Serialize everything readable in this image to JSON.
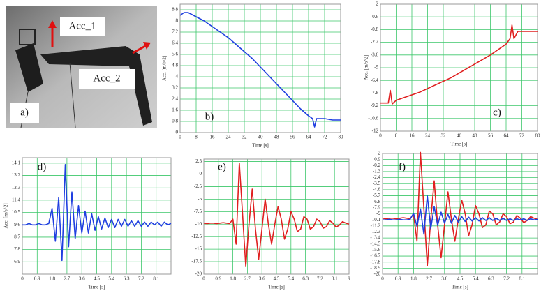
{
  "photo": {
    "panel_label": "a)",
    "labels": [
      "Acc_1",
      "Acc_2"
    ]
  },
  "chart_data": [
    {
      "type": "line",
      "panel_label": "b)",
      "x_label": "Time [s]",
      "y_label": "Acc. [m/s^2]",
      "xlim": [
        0,
        80
      ],
      "xticks": [
        0,
        8,
        16,
        24,
        32,
        40,
        48,
        56,
        64,
        72,
        80
      ],
      "ylim": [
        0,
        9.2
      ],
      "yticks": [
        0,
        0.8,
        1.6,
        2.4,
        3.2,
        4,
        4.8,
        5.6,
        6.4,
        7.2,
        8,
        8.8
      ],
      "grid": true,
      "x": [
        0,
        2,
        4,
        8,
        12,
        16,
        20,
        24,
        28,
        32,
        36,
        40,
        44,
        48,
        52,
        56,
        60,
        64,
        66,
        67,
        68,
        72,
        76,
        80
      ],
      "series": [
        {
          "color": "#1f3fe0",
          "values": [
            8.4,
            8.6,
            8.6,
            8.3,
            8.0,
            7.6,
            7.2,
            6.8,
            6.3,
            5.8,
            5.3,
            4.7,
            4.1,
            3.5,
            2.9,
            2.3,
            1.7,
            1.2,
            1.0,
            0.4,
            1.0,
            1.0,
            0.9,
            0.9
          ]
        }
      ]
    },
    {
      "type": "line",
      "panel_label": "c)",
      "x_label": "Time [s]",
      "y_label": "Acc. [m/s^2]",
      "xlim": [
        0,
        80
      ],
      "xticks": [
        0,
        8,
        16,
        24,
        32,
        40,
        48,
        56,
        64,
        72,
        80
      ],
      "ylim": [
        -12,
        2
      ],
      "yticks": [
        -12,
        -10.6,
        -9.2,
        -7.8,
        -6.4,
        -5,
        -3.6,
        -2.2,
        -0.8,
        0.6,
        2
      ],
      "grid": true,
      "x": [
        0,
        2,
        4,
        5,
        6,
        8,
        12,
        16,
        20,
        24,
        28,
        32,
        36,
        40,
        44,
        48,
        52,
        56,
        60,
        64,
        66,
        67,
        68,
        70,
        72,
        76,
        80
      ],
      "series": [
        {
          "color": "#e02020",
          "values": [
            -8.9,
            -8.9,
            -8.9,
            -7.5,
            -9.0,
            -8.6,
            -8.3,
            -8.0,
            -7.7,
            -7.3,
            -6.9,
            -6.5,
            -6.1,
            -5.6,
            -5.1,
            -4.6,
            -4.1,
            -3.6,
            -3.0,
            -2.4,
            -1.8,
            -0.3,
            -1.8,
            -1.0,
            -1.0,
            -1.0,
            -1.0
          ]
        }
      ]
    },
    {
      "type": "line",
      "panel_label": "d)",
      "x_label": "Time [s]",
      "y_label": "Acc. [m/s^2]",
      "xlim": [
        0,
        9
      ],
      "xticks": [
        0,
        0.9,
        1.8,
        2.7,
        3.6,
        4.5,
        5.4,
        6.3,
        7.2,
        8.1
      ],
      "ylim": [
        6,
        14.5
      ],
      "yticks": [
        6.9,
        7.8,
        8.7,
        9.6,
        10.5,
        11.4,
        12.3,
        13.2,
        14.1
      ],
      "grid": true,
      "x": [
        0,
        0.2,
        0.4,
        0.6,
        0.8,
        1.0,
        1.2,
        1.4,
        1.6,
        1.8,
        2.0,
        2.2,
        2.4,
        2.6,
        2.8,
        3.0,
        3.2,
        3.4,
        3.6,
        3.8,
        4.0,
        4.2,
        4.4,
        4.6,
        4.8,
        5.0,
        5.2,
        5.4,
        5.6,
        5.8,
        6.0,
        6.2,
        6.4,
        6.6,
        6.8,
        7.0,
        7.2,
        7.4,
        7.6,
        7.8,
        8.0,
        8.2,
        8.4,
        8.6,
        8.8,
        9.0
      ],
      "series": [
        {
          "color": "#1f3fe0",
          "values": [
            9.6,
            9.6,
            9.7,
            9.6,
            9.6,
            9.7,
            9.6,
            9.6,
            9.7,
            10.8,
            8.4,
            11.6,
            7.0,
            14.0,
            8.0,
            12.0,
            8.6,
            11.0,
            9.0,
            10.6,
            9.0,
            10.4,
            9.2,
            10.2,
            9.3,
            10.1,
            9.4,
            10.0,
            9.4,
            10.0,
            9.5,
            10.0,
            9.5,
            9.9,
            9.5,
            9.9,
            9.5,
            9.8,
            9.5,
            9.8,
            9.6,
            9.8,
            9.5,
            9.8,
            9.6,
            9.7
          ]
        }
      ]
    },
    {
      "type": "line",
      "panel_label": "e)",
      "x_label": "Time [s]",
      "xlim": [
        0,
        9
      ],
      "xticks": [
        0,
        0.9,
        1.8,
        2.7,
        3.6,
        4.5,
        5.4,
        6.3,
        7.2,
        8.1,
        9
      ],
      "ylim": [
        -20,
        3
      ],
      "yticks": [
        -20,
        -17.5,
        -15,
        -12.5,
        -10,
        -7.5,
        -5,
        -2.5,
        0,
        2.5
      ],
      "grid": true,
      "x": [
        0,
        0.2,
        0.4,
        0.6,
        0.8,
        1.0,
        1.2,
        1.4,
        1.6,
        1.8,
        2.0,
        2.2,
        2.4,
        2.6,
        2.8,
        3.0,
        3.2,
        3.4,
        3.6,
        3.8,
        4.0,
        4.2,
        4.4,
        4.6,
        4.8,
        5.0,
        5.2,
        5.4,
        5.6,
        5.8,
        6.0,
        6.2,
        6.4,
        6.6,
        6.8,
        7.0,
        7.2,
        7.4,
        7.6,
        7.8,
        8.0,
        8.2,
        8.4,
        8.6,
        8.8,
        9.0
      ],
      "series": [
        {
          "color": "#e02020",
          "values": [
            -9.8,
            -9.9,
            -9.8,
            -9.8,
            -9.9,
            -9.8,
            -9.7,
            -9.8,
            -9.9,
            -9.0,
            -14,
            2.2,
            -8,
            -18.5,
            -10,
            -3,
            -11,
            -17,
            -11,
            -5,
            -10,
            -14,
            -10,
            -6.5,
            -9,
            -13,
            -11,
            -7.5,
            -9,
            -11.5,
            -11,
            -8.5,
            -9,
            -11,
            -10.5,
            -9,
            -9.5,
            -10.8,
            -10.5,
            -9.3,
            -9.8,
            -10.6,
            -10.2,
            -9.5,
            -9.8,
            -10
          ]
        }
      ]
    },
    {
      "type": "line",
      "panel_label": "f)",
      "x_label": "Time [s]",
      "xlim": [
        0,
        9
      ],
      "xticks": [
        0,
        0.9,
        1.8,
        2.7,
        3.6,
        4.5,
        5.4,
        6.3,
        7.2,
        8.1
      ],
      "ylim": [
        -20,
        2
      ],
      "yticks": [
        -20,
        -18.9,
        -17.8,
        -16.7,
        -15.6,
        -14.5,
        -13.4,
        -12.3,
        -11.2,
        -10.1,
        -9,
        -7.9,
        -6.8,
        -5.7,
        -4.6,
        -3.5,
        -2.4,
        -1.3,
        -0.2,
        0.9,
        2
      ],
      "grid": true,
      "x": [
        0,
        0.2,
        0.4,
        0.6,
        0.8,
        1.0,
        1.2,
        1.4,
        1.6,
        1.8,
        2.0,
        2.2,
        2.4,
        2.6,
        2.8,
        3.0,
        3.2,
        3.4,
        3.6,
        3.8,
        4.0,
        4.2,
        4.4,
        4.6,
        4.8,
        5.0,
        5.2,
        5.4,
        5.6,
        5.8,
        6.0,
        6.2,
        6.4,
        6.6,
        6.8,
        7.0,
        7.2,
        7.4,
        7.6,
        7.8,
        8.0,
        8.2,
        8.4,
        8.6,
        8.8,
        9.0
      ],
      "series": [
        {
          "color": "#e02020",
          "values": [
            -9.8,
            -9.9,
            -9.8,
            -9.8,
            -9.9,
            -9.8,
            -9.7,
            -9.8,
            -9.9,
            -9.0,
            -14,
            2.2,
            -8,
            -18.5,
            -10,
            -3,
            -11,
            -17,
            -11,
            -5,
            -10,
            -14,
            -10,
            -6.5,
            -9,
            -13,
            -11,
            -7.5,
            -9,
            -11.5,
            -11,
            -8.5,
            -9,
            -11,
            -10.5,
            -9,
            -9.5,
            -10.8,
            -10.5,
            -9.3,
            -9.8,
            -10.6,
            -10.2,
            -9.5,
            -9.8,
            -10
          ]
        },
        {
          "color": "#1f3fe0",
          "values": [
            -10.1,
            -10.1,
            -10,
            -10.1,
            -10.1,
            -10,
            -10.1,
            -10.1,
            -10,
            -8.9,
            -11.3,
            -8.1,
            -12.7,
            -5.7,
            -11.7,
            -7.7,
            -11.1,
            -8.7,
            -10.7,
            -9.1,
            -10.7,
            -9.3,
            -10.5,
            -9.5,
            -10.4,
            -9.6,
            -10.3,
            -9.7,
            -10.3,
            -9.7,
            -10.2,
            -9.7,
            -10.2,
            -9.8,
            -10.2,
            -9.8,
            -10.2,
            -9.9,
            -10.2,
            -9.9,
            -10.1,
            -9.9,
            -10.2,
            -9.9,
            -10.1,
            -10
          ]
        }
      ]
    }
  ]
}
